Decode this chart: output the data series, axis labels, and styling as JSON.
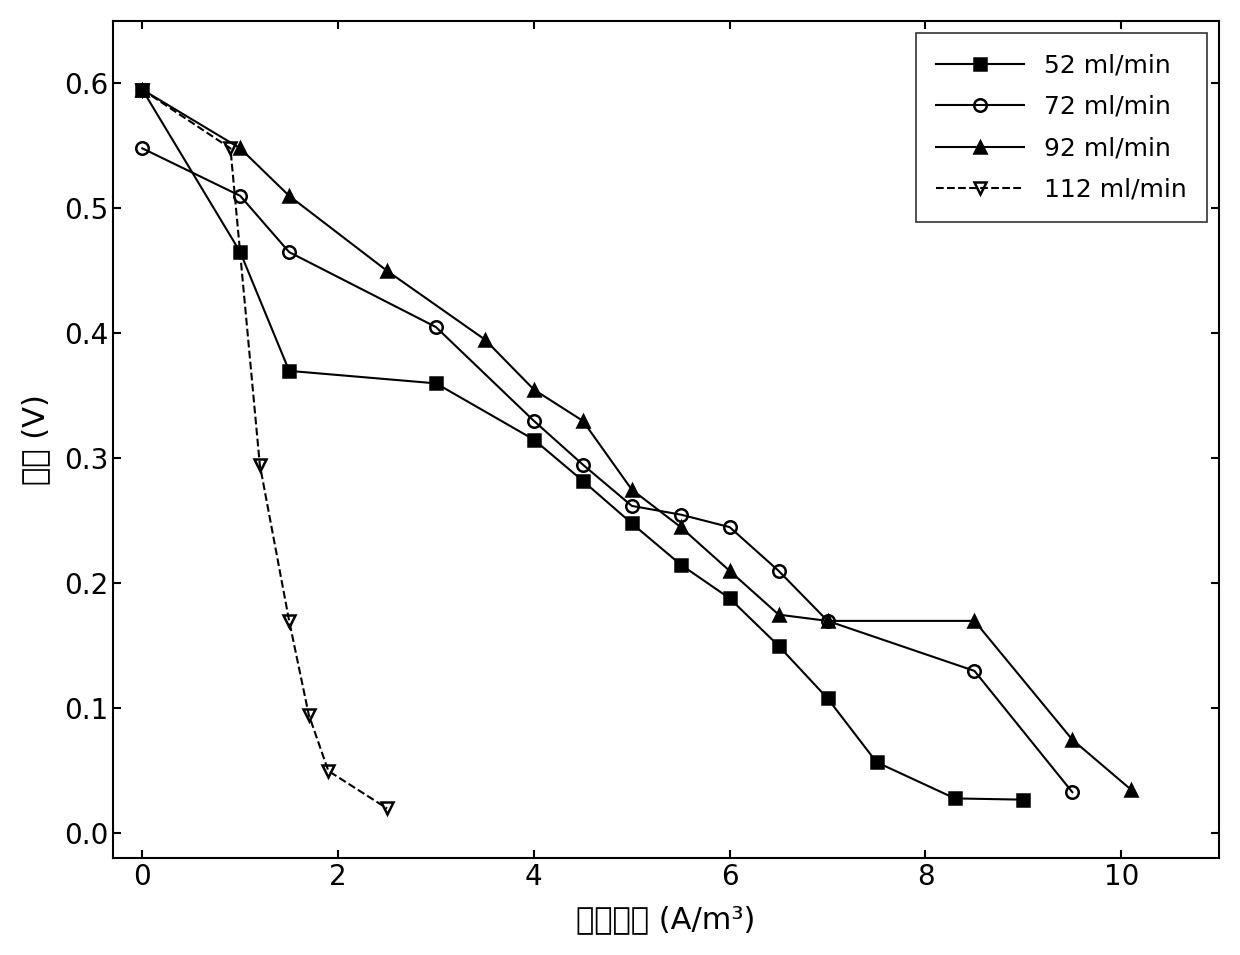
{
  "series": [
    {
      "label": "52 ml/min",
      "marker": "s",
      "fillstyle": "full",
      "color": "black",
      "linestyle": "-",
      "x": [
        0,
        1.0,
        1.5,
        3.0,
        4.0,
        4.5,
        5.0,
        5.5,
        6.0,
        6.5,
        7.0,
        7.5,
        8.3,
        9.0
      ],
      "y": [
        0.595,
        0.465,
        0.37,
        0.36,
        0.315,
        0.282,
        0.248,
        0.215,
        0.188,
        0.15,
        0.108,
        0.057,
        0.028,
        0.027
      ]
    },
    {
      "label": "72 ml/min",
      "marker": "o",
      "fillstyle": "none",
      "color": "black",
      "linestyle": "-",
      "x": [
        0,
        1.0,
        1.5,
        3.0,
        4.0,
        4.5,
        5.0,
        5.5,
        6.0,
        6.5,
        7.0,
        8.5,
        9.5
      ],
      "y": [
        0.548,
        0.51,
        0.465,
        0.405,
        0.33,
        0.295,
        0.262,
        0.255,
        0.245,
        0.21,
        0.17,
        0.13,
        0.033
      ]
    },
    {
      "label": "92 ml/min",
      "marker": "^",
      "fillstyle": "full",
      "color": "black",
      "linestyle": "-",
      "x": [
        0,
        1.0,
        1.5,
        2.5,
        3.5,
        4.0,
        4.5,
        5.0,
        5.5,
        6.0,
        6.5,
        7.0,
        8.5,
        9.5,
        10.1
      ],
      "y": [
        0.595,
        0.548,
        0.51,
        0.45,
        0.395,
        0.355,
        0.33,
        0.275,
        0.245,
        0.21,
        0.175,
        0.17,
        0.17,
        0.075,
        0.035
      ]
    },
    {
      "label": "112 ml/min",
      "marker": "v",
      "fillstyle": "none",
      "color": "black",
      "linestyle": "--",
      "x": [
        0,
        0.9,
        1.2,
        1.5,
        1.7,
        1.9,
        2.5
      ],
      "y": [
        0.595,
        0.548,
        0.295,
        0.17,
        0.095,
        0.05,
        0.02
      ]
    }
  ],
  "xlabel": "电流密度 (A/m³)",
  "ylabel": "电压 (V)",
  "xlim": [
    -0.3,
    11.0
  ],
  "ylim": [
    -0.02,
    0.65
  ],
  "xticks": [
    0,
    2,
    4,
    6,
    8,
    10
  ],
  "yticks": [
    0.0,
    0.1,
    0.2,
    0.3,
    0.4,
    0.5,
    0.6
  ],
  "legend_loc": "upper right",
  "figsize": [
    12.4,
    9.55
  ],
  "dpi": 100
}
